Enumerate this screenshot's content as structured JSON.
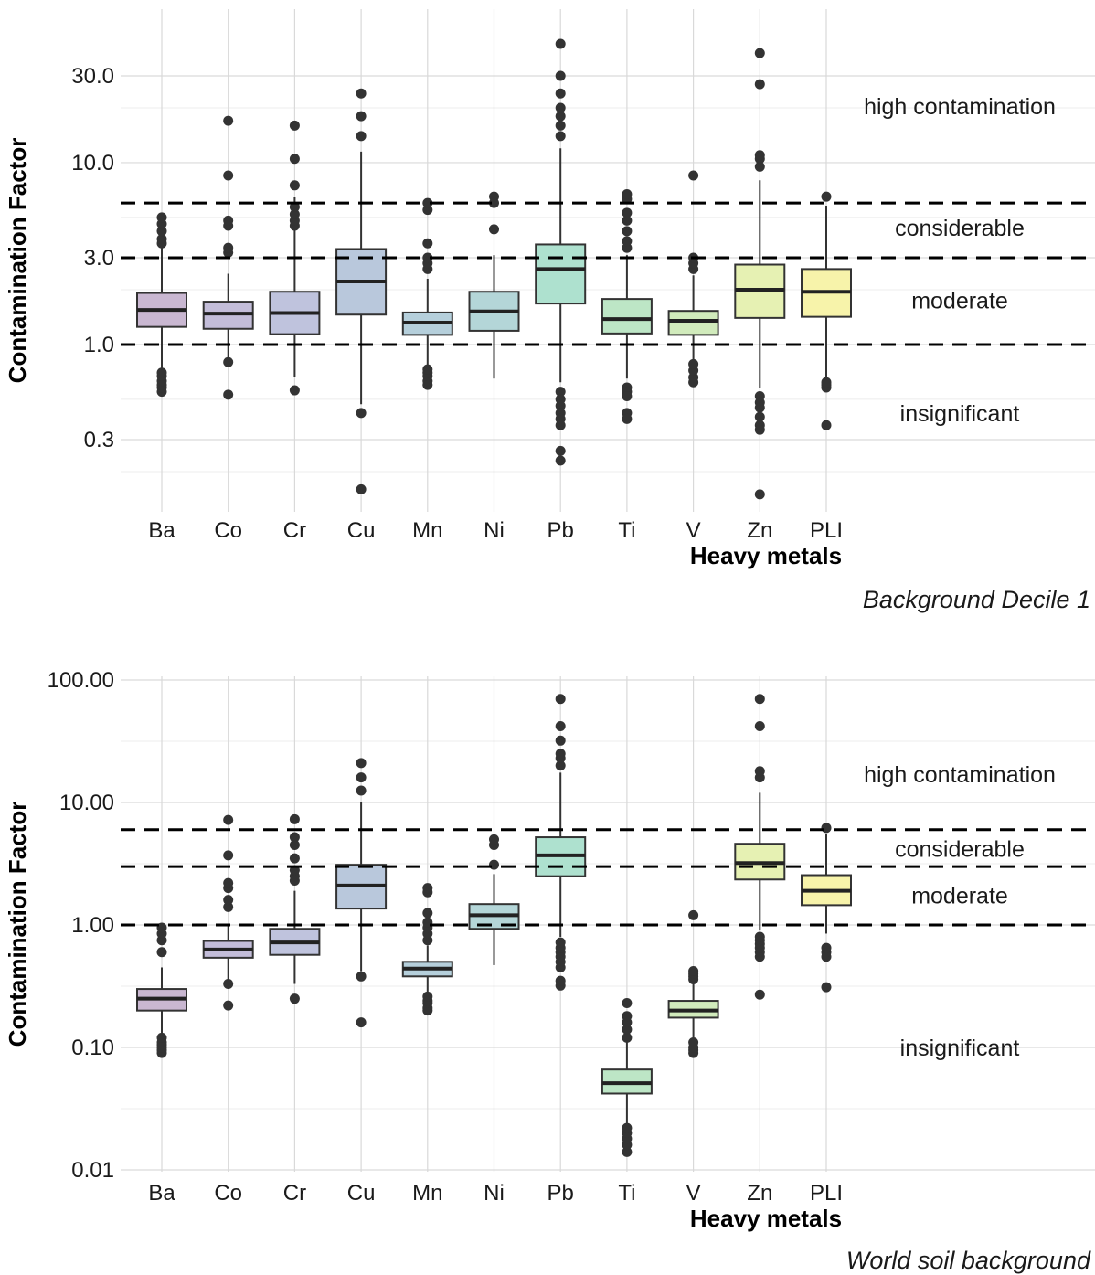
{
  "chart_data": [
    {
      "type": "boxplot",
      "caption": "Background Decile 1",
      "xlabel": "Heavy metals",
      "ylabel": "Contamination Factor",
      "yscale": "log10",
      "ylim": [
        0.13,
        55
      ],
      "y_ticks": [
        0.3,
        1.0,
        3.0,
        10.0,
        30.0
      ],
      "y_tick_labels": [
        "0.3",
        "1.0",
        "3.0",
        "10.0",
        "30.0"
      ],
      "y_minor_ticks": [
        0.2,
        0.5,
        2,
        5,
        20
      ],
      "grid": true,
      "thresholds": [
        1,
        3,
        6
      ],
      "zones": [
        {
          "label": "high contamination",
          "y": 20.5
        },
        {
          "label": "considerable",
          "y": 4.4
        },
        {
          "label": "moderate",
          "y": 1.75
        },
        {
          "label": "insignificant",
          "y": 0.42
        }
      ],
      "categories": [
        "Ba",
        "Co",
        "Cr",
        "Cu",
        "Mn",
        "Ni",
        "Pb",
        "Ti",
        "V",
        "Zn",
        "PLI"
      ],
      "colors": [
        "#c9b7d1",
        "#c3bdd9",
        "#bfc3dd",
        "#b9c8dc",
        "#b5cfdb",
        "#b4d6d8",
        "#aee1cf",
        "#bde6c6",
        "#d1ebbc",
        "#e6f1b3",
        "#f7f3aa"
      ],
      "boxes": [
        {
          "whislo": 0.57,
          "q1": 1.25,
          "med": 1.55,
          "q3": 1.92,
          "whishi": 5.2,
          "fliers": [
            0.55,
            0.58,
            0.6,
            0.63,
            0.67,
            0.7,
            3.6,
            3.8,
            4.2,
            4.6,
            5.0
          ]
        },
        {
          "whislo": 0.85,
          "q1": 1.22,
          "med": 1.48,
          "q3": 1.72,
          "whishi": 2.45,
          "fliers": [
            0.53,
            0.8,
            3.2,
            3.4,
            4.5,
            4.8,
            8.5,
            17
          ]
        },
        {
          "whislo": 0.66,
          "q1": 1.14,
          "med": 1.49,
          "q3": 1.95,
          "whishi": 6.5,
          "fliers": [
            0.56,
            4.5,
            4.8,
            5.2,
            5.7,
            7.5,
            10.5,
            16
          ]
        },
        {
          "whislo": 0.47,
          "q1": 1.46,
          "med": 2.22,
          "q3": 3.35,
          "whishi": 11.5,
          "fliers": [
            0.42,
            0.16,
            14,
            18,
            24
          ]
        },
        {
          "whislo": 0.77,
          "q1": 1.13,
          "med": 1.32,
          "q3": 1.5,
          "whishi": 2.3,
          "fliers": [
            0.6,
            0.63,
            0.67,
            0.7,
            0.73,
            2.6,
            2.8,
            3.0,
            3.6,
            5.5,
            6.0
          ]
        },
        {
          "whislo": 0.65,
          "q1": 1.19,
          "med": 1.52,
          "q3": 1.95,
          "whishi": 3.1,
          "fliers": [
            4.3,
            6.0,
            6.5
          ]
        },
        {
          "whislo": 0.62,
          "q1": 1.68,
          "med": 2.6,
          "q3": 3.55,
          "whishi": 12.0,
          "fliers": [
            0.55,
            0.5,
            0.46,
            0.42,
            0.39,
            0.36,
            0.26,
            0.23,
            14,
            16,
            18,
            20,
            24,
            30,
            45
          ]
        },
        {
          "whislo": 0.65,
          "q1": 1.15,
          "med": 1.38,
          "q3": 1.78,
          "whishi": 3.1,
          "fliers": [
            0.58,
            0.55,
            0.52,
            0.42,
            0.39,
            3.4,
            3.7,
            4.2,
            4.8,
            5.3,
            6.3,
            6.7
          ]
        },
        {
          "whislo": 0.8,
          "q1": 1.13,
          "med": 1.35,
          "q3": 1.53,
          "whishi": 2.4,
          "fliers": [
            0.62,
            0.66,
            0.72,
            0.78,
            2.6,
            2.8,
            3.0,
            8.5
          ]
        },
        {
          "whislo": 0.58,
          "q1": 1.4,
          "med": 2.0,
          "q3": 2.75,
          "whishi": 8.0,
          "fliers": [
            0.52,
            0.48,
            0.45,
            0.4,
            0.36,
            0.34,
            0.15,
            9.5,
            10.5,
            11,
            27,
            40
          ]
        },
        {
          "whislo": 0.65,
          "q1": 1.42,
          "med": 1.95,
          "q3": 2.6,
          "whishi": 5.8,
          "fliers": [
            0.6,
            0.58,
            0.62,
            0.36,
            6.5
          ]
        }
      ]
    },
    {
      "type": "boxplot",
      "caption": "World soil background",
      "xlabel": "Heavy metals",
      "ylabel": "Contamination Factor",
      "yscale": "log10",
      "ylim": [
        0.01,
        110
      ],
      "y_ticks": [
        0.01,
        0.1,
        1.0,
        10.0,
        100.0
      ],
      "y_tick_labels": [
        "0.01",
        "0.10",
        "1.00",
        "10.00",
        "100.00"
      ],
      "y_minor_ticks": [
        0.0316,
        0.316,
        3.16,
        31.6
      ],
      "grid": true,
      "thresholds": [
        1,
        3,
        6
      ],
      "zones": [
        {
          "label": "high contamination",
          "y": 17
        },
        {
          "label": "considerable",
          "y": 4.2
        },
        {
          "label": "moderate",
          "y": 1.75
        },
        {
          "label": "insignificant",
          "y": 0.1
        }
      ],
      "categories": [
        "Ba",
        "Co",
        "Cr",
        "Cu",
        "Mn",
        "Ni",
        "Pb",
        "Ti",
        "V",
        "Zn",
        "PLI"
      ],
      "colors": [
        "#c9b7d1",
        "#c3bdd9",
        "#bfc3dd",
        "#b9c8dc",
        "#b5cfdb",
        "#b4d6d8",
        "#aee1cf",
        "#bde6c6",
        "#d1ebbc",
        "#e6f1b3",
        "#f7f3aa"
      ],
      "boxes": [
        {
          "whislo": 0.12,
          "q1": 0.2,
          "med": 0.25,
          "q3": 0.3,
          "whishi": 0.45,
          "fliers": [
            0.09,
            0.095,
            0.1,
            0.105,
            0.11,
            0.12,
            0.6,
            0.75,
            0.85,
            0.95
          ]
        },
        {
          "whislo": 0.34,
          "q1": 0.54,
          "med": 0.63,
          "q3": 0.74,
          "whishi": 1.0,
          "fliers": [
            0.22,
            0.33,
            1.4,
            1.6,
            2.0,
            2.2,
            3.7,
            7.2
          ]
        },
        {
          "whislo": 0.33,
          "q1": 0.57,
          "med": 0.72,
          "q3": 0.93,
          "whishi": 1.9,
          "fliers": [
            0.25,
            2.3,
            2.5,
            2.8,
            3.5,
            4.5,
            5.2,
            7.3
          ]
        },
        {
          "whislo": 0.42,
          "q1": 1.36,
          "med": 2.1,
          "q3": 3.1,
          "whishi": 10.0,
          "fliers": [
            0.38,
            0.16,
            12.5,
            16,
            21
          ]
        },
        {
          "whislo": 0.27,
          "q1": 0.38,
          "med": 0.44,
          "q3": 0.5,
          "whishi": 0.68,
          "fliers": [
            0.2,
            0.21,
            0.23,
            0.24,
            0.26,
            0.75,
            0.85,
            0.95,
            1.05,
            1.25,
            1.85,
            2.0
          ]
        },
        {
          "whislo": 0.47,
          "q1": 0.93,
          "med": 1.2,
          "q3": 1.48,
          "whishi": 2.6,
          "fliers": [
            3.1,
            4.5,
            5.0
          ]
        },
        {
          "whislo": 0.8,
          "q1": 2.5,
          "med": 3.7,
          "q3": 5.2,
          "whishi": 17.5,
          "fliers": [
            0.32,
            0.35,
            0.45,
            0.5,
            0.55,
            0.6,
            0.65,
            0.72,
            20,
            23,
            25,
            32,
            42,
            70
          ]
        },
        {
          "whislo": 0.024,
          "q1": 0.042,
          "med": 0.051,
          "q3": 0.066,
          "whishi": 0.11,
          "fliers": [
            0.014,
            0.016,
            0.018,
            0.02,
            0.022,
            0.12,
            0.14,
            0.16,
            0.18,
            0.23
          ]
        },
        {
          "whislo": 0.12,
          "q1": 0.175,
          "med": 0.2,
          "q3": 0.24,
          "whishi": 0.33,
          "fliers": [
            0.09,
            0.095,
            0.1,
            0.11,
            0.36,
            0.38,
            0.4,
            0.42,
            1.2
          ]
        },
        {
          "whislo": 0.9,
          "q1": 2.35,
          "med": 3.2,
          "q3": 4.6,
          "whishi": 12.0,
          "fliers": [
            0.27,
            0.55,
            0.6,
            0.65,
            0.7,
            0.75,
            0.8,
            16,
            18,
            42,
            70
          ]
        },
        {
          "whislo": 0.85,
          "q1": 1.45,
          "med": 1.9,
          "q3": 2.55,
          "whishi": 5.5,
          "fliers": [
            0.31,
            0.55,
            0.6,
            0.65,
            6.2
          ]
        }
      ]
    }
  ]
}
